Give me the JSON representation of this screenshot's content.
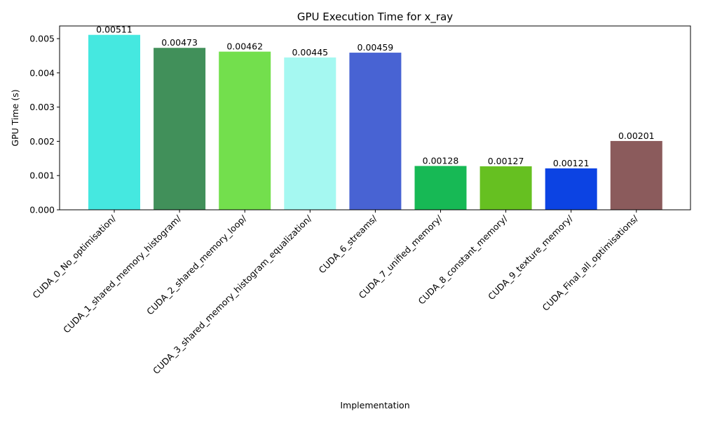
{
  "chart_data": {
    "type": "bar",
    "title": "GPU Execution Time for x_ray",
    "xlabel": "Implementation",
    "ylabel": "GPU Time (s)",
    "ylim": [
      0,
      0.00537
    ],
    "yticks": [
      "0.000",
      "0.001",
      "0.002",
      "0.003",
      "0.004",
      "0.005"
    ],
    "ytick_values": [
      0,
      0.001,
      0.002,
      0.003,
      0.004,
      0.005
    ],
    "grid": false,
    "categories": [
      "CUDA_0_No_optimisation/",
      "CUDA_1_shared_memory_histogram/",
      "CUDA_2_shared_memory_loop/",
      "CUDA_3_shared_memory_histogram_equalization/",
      "CUDA_6_streams/",
      "CUDA_7_unified_memory/",
      "CUDA_8_constant_memory/",
      "CUDA_9_texture_memory/",
      "CUDA_Final_all_optimisations/"
    ],
    "values": [
      0.00511,
      0.00473,
      0.00462,
      0.00445,
      0.00459,
      0.00128,
      0.00127,
      0.00121,
      0.00201
    ],
    "value_labels": [
      "0.00511",
      "0.00473",
      "0.00462",
      "0.00445",
      "0.00459",
      "0.00128",
      "0.00127",
      "0.00121",
      "0.00201"
    ],
    "colors": [
      "#45e8e0",
      "#41905a",
      "#73df4d",
      "#a5f8f1",
      "#4863d3",
      "#17b955",
      "#66c021",
      "#0c43e3",
      "#8b5b5c"
    ]
  }
}
